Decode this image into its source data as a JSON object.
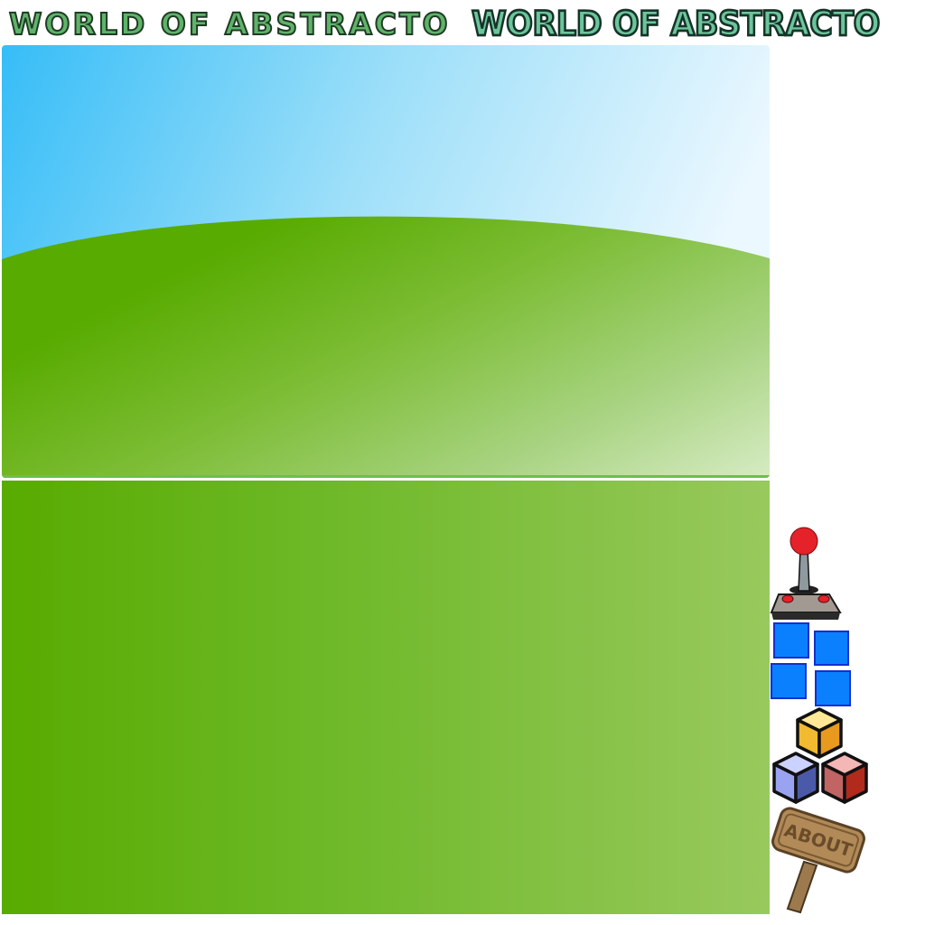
{
  "header": {
    "title_plain": "WORLD OF ABSTRACTO",
    "title_textured": "WORLD OF ABSTRACTO"
  },
  "scene": {
    "sky_colors": [
      "#36bdf7",
      "#e8f7ff"
    ],
    "hill_colors": [
      "#58ab00",
      "#d4eabb"
    ],
    "ground_colors": [
      "#58ab00",
      "#98c95e"
    ]
  },
  "menu": {
    "items": [
      {
        "id": "play",
        "icon": "joystick-icon"
      },
      {
        "id": "puzzle",
        "icon": "blue-squares-icon"
      },
      {
        "id": "build",
        "icon": "colored-cubes-icon"
      },
      {
        "id": "about",
        "icon": "about-signpost-icon",
        "label": "ABOUT"
      }
    ]
  }
}
